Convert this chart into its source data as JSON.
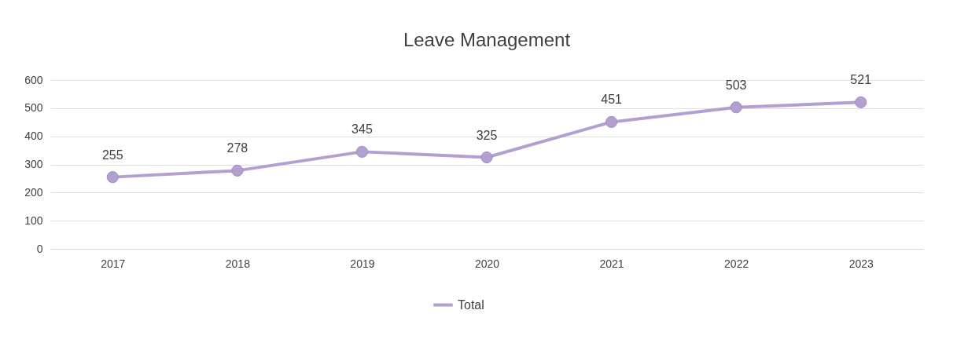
{
  "chart_data": {
    "type": "line",
    "title": "Leave Management",
    "categories": [
      "2017",
      "2018",
      "2019",
      "2020",
      "2021",
      "2022",
      "2023"
    ],
    "series": [
      {
        "name": "Total",
        "color": "#b4a0d0",
        "values": [
          255,
          278,
          345,
          325,
          451,
          503,
          521
        ]
      }
    ],
    "ylim": [
      0,
      600
    ],
    "yticks": [
      0,
      100,
      200,
      300,
      400,
      500,
      600
    ],
    "grid": "y",
    "legend": "bottom",
    "marker": "circle",
    "data_labels": true
  }
}
